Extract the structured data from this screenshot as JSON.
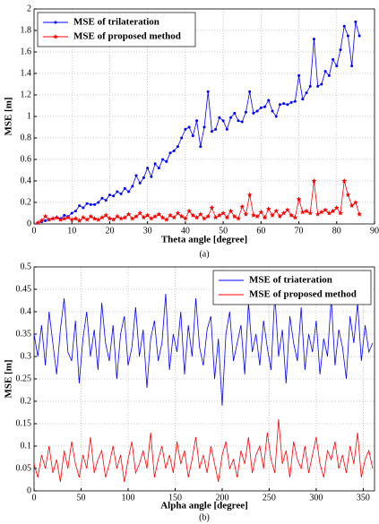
{
  "chart_data": [
    {
      "type": "line",
      "caption": "(a)",
      "xlabel": "Theta angle [degree]",
      "ylabel": "MSE [m]",
      "legend": "upper left",
      "grid": true,
      "xlim": [
        0,
        90
      ],
      "xticks": [
        0,
        10,
        20,
        30,
        40,
        50,
        60,
        70,
        80,
        90
      ],
      "ylim": [
        0,
        2
      ],
      "yticks": [
        0,
        0.2,
        0.4,
        0.6,
        0.8,
        1,
        1.2,
        1.4,
        1.6,
        1.8,
        2
      ],
      "x": [
        1,
        2,
        3,
        4,
        5,
        6,
        7,
        8,
        9,
        10,
        11,
        12,
        13,
        14,
        15,
        16,
        17,
        18,
        19,
        20,
        21,
        22,
        23,
        24,
        25,
        26,
        27,
        28,
        29,
        30,
        31,
        32,
        33,
        34,
        35,
        36,
        37,
        38,
        39,
        40,
        41,
        42,
        43,
        44,
        45,
        46,
        47,
        48,
        49,
        50,
        51,
        52,
        53,
        54,
        55,
        56,
        57,
        58,
        59,
        60,
        61,
        62,
        63,
        64,
        65,
        66,
        67,
        68,
        69,
        70,
        71,
        72,
        73,
        74,
        75,
        76,
        77,
        78,
        79,
        80,
        81,
        82,
        83,
        84,
        85,
        86
      ],
      "series": [
        {
          "name": "MSE of trilateration",
          "color": "#0000ff",
          "marker": "dot",
          "values": [
            0.01,
            0.02,
            0.03,
            0.04,
            0.05,
            0.06,
            0.05,
            0.08,
            0.07,
            0.1,
            0.12,
            0.17,
            0.15,
            0.19,
            0.18,
            0.18,
            0.2,
            0.24,
            0.22,
            0.27,
            0.26,
            0.3,
            0.28,
            0.33,
            0.3,
            0.35,
            0.45,
            0.38,
            0.43,
            0.52,
            0.44,
            0.56,
            0.52,
            0.6,
            0.58,
            0.66,
            0.68,
            0.72,
            0.8,
            0.88,
            0.9,
            0.82,
            0.96,
            0.72,
            0.9,
            1.23,
            0.86,
            0.88,
            0.99,
            0.96,
            0.88,
            0.99,
            1.03,
            0.96,
            0.95,
            1.04,
            1.23,
            1.03,
            1.05,
            1.08,
            1.09,
            1.15,
            1.05,
            1.0,
            1.11,
            1.12,
            1.11,
            1.13,
            1.14,
            1.38,
            1.16,
            1.22,
            1.28,
            1.72,
            1.28,
            1.3,
            1.42,
            1.38,
            1.53,
            1.47,
            1.62,
            1.84,
            1.75,
            1.47,
            1.88,
            1.75
          ]
        },
        {
          "name": "MSE of proposed method",
          "color": "#ff0000",
          "marker": "star",
          "values": [
            0.01,
            0.03,
            0.07,
            0.04,
            0.05,
            0.06,
            0.04,
            0.05,
            0.06,
            0.04,
            0.05,
            0.03,
            0.06,
            0.04,
            0.07,
            0.05,
            0.04,
            0.06,
            0.08,
            0.05,
            0.04,
            0.07,
            0.05,
            0.06,
            0.09,
            0.05,
            0.07,
            0.1,
            0.06,
            0.08,
            0.05,
            0.07,
            0.09,
            0.06,
            0.04,
            0.08,
            0.06,
            0.1,
            0.07,
            0.05,
            0.12,
            0.08,
            0.06,
            0.09,
            0.05,
            0.07,
            0.15,
            0.06,
            0.08,
            0.1,
            0.06,
            0.12,
            0.07,
            0.05,
            0.16,
            0.09,
            0.27,
            0.08,
            0.07,
            0.11,
            0.06,
            0.14,
            0.08,
            0.12,
            0.07,
            0.1,
            0.13,
            0.08,
            0.06,
            0.23,
            0.11,
            0.12,
            0.1,
            0.4,
            0.09,
            0.11,
            0.13,
            0.1,
            0.12,
            0.15,
            0.1,
            0.4,
            0.27,
            0.17,
            0.2,
            0.09
          ]
        }
      ]
    },
    {
      "type": "line",
      "caption": "(b)",
      "xlabel": "Alpha angle [degree]",
      "ylabel": "MSE [m]",
      "legend": "upper right",
      "grid": true,
      "xlim": [
        0,
        362
      ],
      "xticks": [
        0,
        50,
        100,
        150,
        200,
        250,
        300,
        350
      ],
      "ylim": [
        0,
        0.5
      ],
      "yticks": [
        0,
        0.05,
        0.1,
        0.15,
        0.2,
        0.25,
        0.3,
        0.35,
        0.4,
        0.45,
        0.5
      ],
      "x": [
        0,
        4,
        8,
        12,
        16,
        20,
        24,
        28,
        32,
        36,
        40,
        44,
        48,
        52,
        56,
        60,
        64,
        68,
        72,
        76,
        80,
        84,
        88,
        92,
        96,
        100,
        104,
        108,
        112,
        116,
        120,
        124,
        128,
        132,
        136,
        140,
        144,
        148,
        152,
        156,
        160,
        164,
        168,
        172,
        176,
        180,
        184,
        188,
        192,
        196,
        200,
        204,
        208,
        212,
        216,
        220,
        224,
        228,
        232,
        236,
        240,
        244,
        248,
        252,
        256,
        260,
        264,
        268,
        272,
        276,
        280,
        284,
        288,
        292,
        296,
        300,
        304,
        308,
        312,
        316,
        320,
        324,
        328,
        332,
        336,
        340,
        344,
        348,
        352,
        356,
        360
      ],
      "series": [
        {
          "name": "MSE of triateration",
          "color": "#0000ff",
          "marker": "none",
          "values": [
            0.35,
            0.3,
            0.37,
            0.28,
            0.4,
            0.33,
            0.26,
            0.36,
            0.43,
            0.31,
            0.29,
            0.38,
            0.24,
            0.34,
            0.4,
            0.3,
            0.36,
            0.27,
            0.42,
            0.33,
            0.29,
            0.37,
            0.25,
            0.35,
            0.39,
            0.28,
            0.32,
            0.41,
            0.3,
            0.36,
            0.23,
            0.34,
            0.38,
            0.29,
            0.33,
            0.44,
            0.27,
            0.35,
            0.31,
            0.4,
            0.26,
            0.37,
            0.3,
            0.43,
            0.32,
            0.28,
            0.36,
            0.39,
            0.25,
            0.34,
            0.19,
            0.35,
            0.4,
            0.29,
            0.33,
            0.37,
            0.26,
            0.42,
            0.31,
            0.35,
            0.28,
            0.38,
            0.32,
            0.27,
            0.44,
            0.3,
            0.36,
            0.24,
            0.39,
            0.33,
            0.29,
            0.41,
            0.27,
            0.35,
            0.31,
            0.38,
            0.26,
            0.34,
            0.3,
            0.43,
            0.28,
            0.36,
            0.32,
            0.25,
            0.39,
            0.33,
            0.42,
            0.29,
            0.37,
            0.31,
            0.33
          ]
        },
        {
          "name": "MSE of proposed method",
          "color": "#ff0000",
          "marker": "none",
          "values": [
            0.06,
            0.03,
            0.08,
            0.05,
            0.1,
            0.04,
            0.07,
            0.02,
            0.09,
            0.05,
            0.11,
            0.06,
            0.03,
            0.08,
            0.05,
            0.12,
            0.04,
            0.07,
            0.09,
            0.03,
            0.06,
            0.1,
            0.05,
            0.08,
            0.02,
            0.07,
            0.11,
            0.04,
            0.06,
            0.09,
            0.05,
            0.13,
            0.03,
            0.07,
            0.1,
            0.05,
            0.08,
            0.04,
            0.11,
            0.06,
            0.09,
            0.03,
            0.07,
            0.12,
            0.05,
            0.08,
            0.04,
            0.1,
            0.06,
            0.02,
            0.08,
            0.11,
            0.05,
            0.07,
            0.03,
            0.09,
            0.06,
            0.12,
            0.04,
            0.08,
            0.1,
            0.05,
            0.13,
            0.07,
            0.04,
            0.16,
            0.06,
            0.09,
            0.03,
            0.11,
            0.07,
            0.05,
            0.1,
            0.04,
            0.08,
            0.12,
            0.06,
            0.03,
            0.09,
            0.07,
            0.11,
            0.05,
            0.08,
            0.04,
            0.1,
            0.06,
            0.13,
            0.03,
            0.07,
            0.09,
            0.05
          ]
        }
      ]
    }
  ]
}
